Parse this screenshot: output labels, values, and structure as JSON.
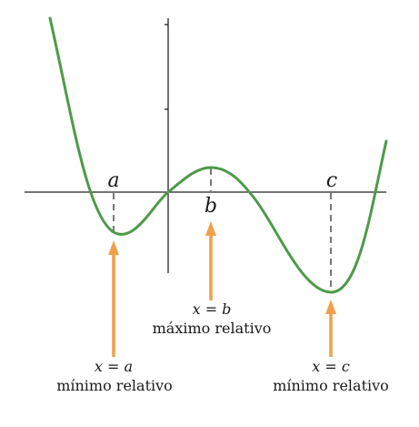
{
  "colors": {
    "curve": "#4e9a4a",
    "axes": "#222222",
    "guide": "#777777",
    "arrow": "#f0a04b"
  },
  "points": {
    "a": {
      "name": "a",
      "equation": "x = a",
      "caption": "mínimo relativo"
    },
    "b": {
      "name": "b",
      "equation": "x = b",
      "caption": "máximo relativo"
    },
    "c": {
      "name": "c",
      "equation": "x = c",
      "caption": "mínimo relativo"
    }
  }
}
